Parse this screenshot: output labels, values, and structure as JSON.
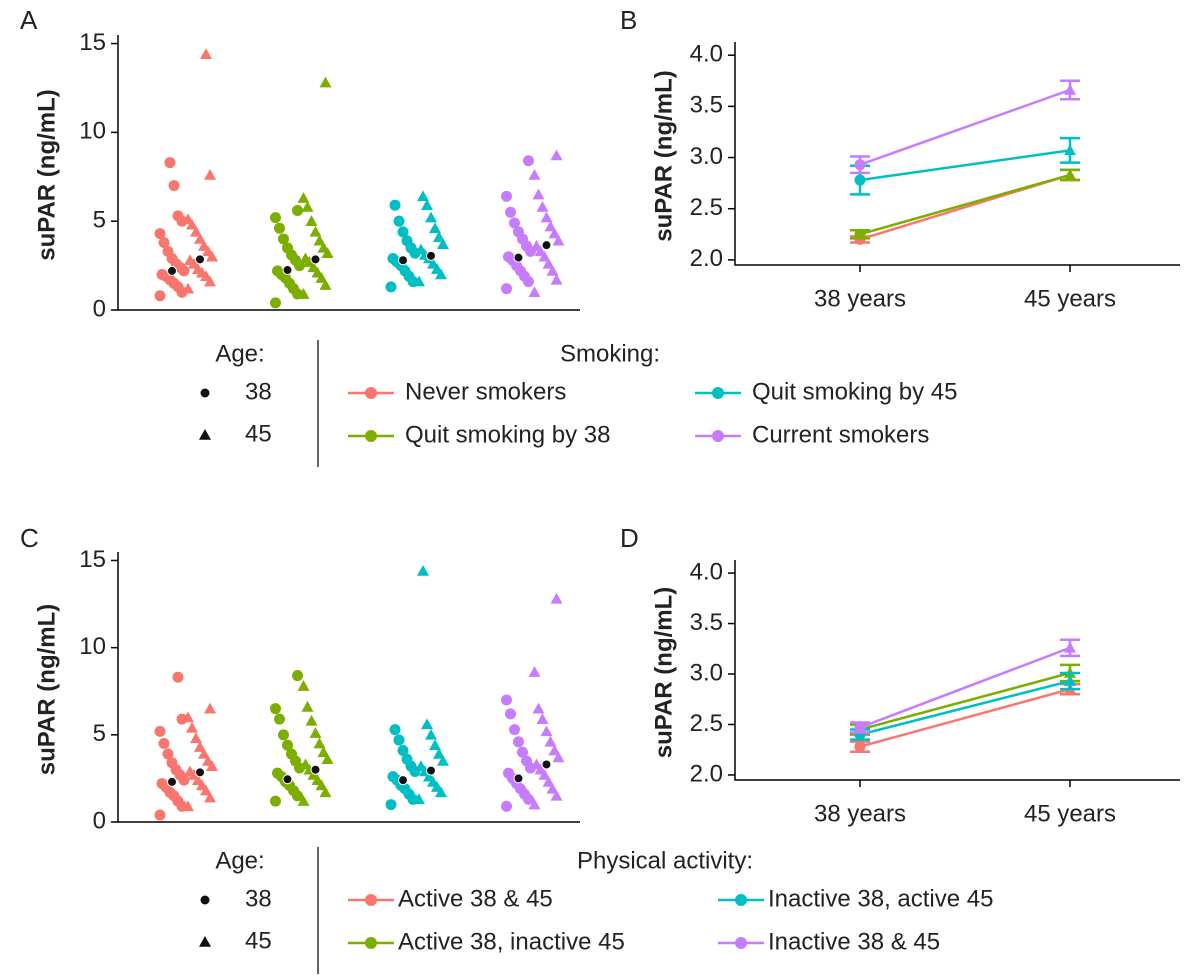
{
  "chart_data": [
    {
      "type": "strip",
      "panel": "A",
      "ylabel": "suPAR (ng/mL)",
      "ylim": [
        0,
        15.2
      ],
      "yticks": [
        0,
        5,
        10,
        15
      ],
      "legend": {
        "age_title": "Age:",
        "ages": [
          "38",
          "45"
        ],
        "group_title": "Smoking:"
      },
      "series": [
        {
          "name": "Never smokers",
          "color": "#f8766d",
          "mean38": 2.2,
          "mean45": 2.85,
          "values38": [
            0.8,
            1.0,
            1.3,
            1.5,
            1.7,
            1.9,
            2.0,
            2.2,
            2.4,
            2.6,
            2.9,
            3.3,
            3.8,
            4.3,
            5.0,
            5.3,
            7.0,
            8.3
          ],
          "values45": [
            1.2,
            1.6,
            1.9,
            2.1,
            2.3,
            2.6,
            2.8,
            3.0,
            3.3,
            3.6,
            4.0,
            4.4,
            4.8,
            5.1,
            7.6,
            14.4
          ]
        },
        {
          "name": "Quit smoking by 38",
          "color": "#7cae00",
          "mean38": 2.25,
          "mean45": 2.85,
          "values38": [
            0.4,
            0.9,
            1.2,
            1.5,
            1.8,
            2.0,
            2.2,
            2.5,
            2.8,
            3.1,
            3.5,
            4.0,
            4.6,
            5.2,
            5.6
          ],
          "values45": [
            0.9,
            1.4,
            1.8,
            2.1,
            2.4,
            2.7,
            2.9,
            3.2,
            3.5,
            3.9,
            4.4,
            5.0,
            5.8,
            6.3,
            12.8
          ]
        },
        {
          "name": "Quit smoking by 45",
          "color": "#00bfc4",
          "mean38": 2.8,
          "mean45": 3.05,
          "values38": [
            1.3,
            1.6,
            1.9,
            2.2,
            2.5,
            2.7,
            2.9,
            3.2,
            3.5,
            3.9,
            4.4,
            5.0,
            5.9
          ],
          "values45": [
            1.6,
            2.0,
            2.3,
            2.6,
            2.9,
            3.1,
            3.4,
            3.7,
            4.1,
            4.6,
            5.2,
            5.9,
            6.4
          ]
        },
        {
          "name": "Current smokers",
          "color": "#c77cff",
          "mean38": 2.95,
          "mean45": 3.65,
          "values38": [
            1.2,
            1.6,
            1.9,
            2.2,
            2.5,
            2.8,
            3.0,
            3.3,
            3.6,
            4.0,
            4.4,
            4.9,
            5.5,
            6.4,
            8.4
          ],
          "values45": [
            1.0,
            1.7,
            2.2,
            2.6,
            3.0,
            3.3,
            3.6,
            3.9,
            4.3,
            4.7,
            5.2,
            5.8,
            6.5,
            7.6,
            8.7
          ]
        }
      ]
    },
    {
      "type": "errorline",
      "panel": "B",
      "ylabel": "suPAR (ng/mL)",
      "categories": [
        "38 years",
        "45 years"
      ],
      "ylim": [
        1.95,
        4.08
      ],
      "yticks": [
        {
          "value": 2.0,
          "label": "2.0"
        },
        {
          "value": 2.5,
          "label": "2.5"
        },
        {
          "value": 3.0,
          "label": "3.0"
        },
        {
          "value": 3.5,
          "label": "3.5"
        },
        {
          "value": 4.0,
          "label": "4.0"
        }
      ],
      "series": [
        {
          "color": "#f8766d",
          "values": [
            2.2,
            2.83
          ],
          "errors": [
            0.03,
            0.05
          ]
        },
        {
          "color": "#7cae00",
          "values": [
            2.25,
            2.83
          ],
          "errors": [
            0.04,
            0.05
          ]
        },
        {
          "color": "#00bfc4",
          "values": [
            2.78,
            3.07
          ],
          "errors": [
            0.14,
            0.12
          ]
        },
        {
          "color": "#c77cff",
          "values": [
            2.93,
            3.66
          ],
          "errors": [
            0.08,
            0.09
          ]
        }
      ]
    },
    {
      "type": "strip",
      "panel": "C",
      "ylabel": "suPAR (ng/mL)",
      "ylim": [
        0,
        15.2
      ],
      "yticks": [
        0,
        5,
        10,
        15
      ],
      "legend": {
        "age_title": "Age:",
        "ages": [
          "38",
          "45"
        ],
        "group_title": "Physical activity:"
      },
      "series": [
        {
          "name": "Active 38 & 45",
          "color": "#f8766d",
          "mean38": 2.3,
          "mean45": 2.85,
          "values38": [
            0.4,
            0.9,
            1.2,
            1.5,
            1.7,
            2.0,
            2.2,
            2.4,
            2.7,
            3.0,
            3.4,
            3.9,
            4.5,
            5.2,
            5.9,
            8.3
          ],
          "values45": [
            0.9,
            1.4,
            1.8,
            2.1,
            2.4,
            2.7,
            2.9,
            3.2,
            3.5,
            3.9,
            4.3,
            4.8,
            5.4,
            6.0,
            6.5
          ]
        },
        {
          "name": "Active 38, inactive 45",
          "color": "#7cae00",
          "mean38": 2.45,
          "mean45": 3.0,
          "values38": [
            1.2,
            1.5,
            1.8,
            2.1,
            2.3,
            2.6,
            2.8,
            3.1,
            3.5,
            3.9,
            4.4,
            5.0,
            5.9,
            6.5,
            8.4
          ],
          "values45": [
            1.2,
            1.7,
            2.1,
            2.4,
            2.7,
            3.0,
            3.3,
            3.6,
            4.0,
            4.5,
            5.1,
            5.8,
            6.6,
            7.8
          ]
        },
        {
          "name": "Inactive 38, active 45",
          "color": "#00bfc4",
          "mean38": 2.4,
          "mean45": 2.95,
          "values38": [
            1.0,
            1.3,
            1.6,
            1.9,
            2.1,
            2.4,
            2.6,
            2.9,
            3.2,
            3.6,
            4.1,
            4.7,
            5.3
          ],
          "values45": [
            1.3,
            1.7,
            2.0,
            2.3,
            2.6,
            2.9,
            3.2,
            3.5,
            3.9,
            4.4,
            5.0,
            5.6,
            14.4
          ]
        },
        {
          "name": "Inactive 38 & 45",
          "color": "#c77cff",
          "mean38": 2.5,
          "mean45": 3.3,
          "values38": [
            0.9,
            1.3,
            1.6,
            1.9,
            2.2,
            2.5,
            2.8,
            3.1,
            3.5,
            4.0,
            4.6,
            5.3,
            6.2,
            7.0
          ],
          "values45": [
            1.0,
            1.5,
            1.9,
            2.3,
            2.7,
            3.0,
            3.3,
            3.7,
            4.1,
            4.6,
            5.2,
            5.9,
            6.5,
            8.6,
            12.8
          ]
        }
      ]
    },
    {
      "type": "errorline",
      "panel": "D",
      "ylabel": "suPAR (ng/mL)",
      "categories": [
        "38 years",
        "45 years"
      ],
      "ylim": [
        1.95,
        4.08
      ],
      "yticks": [
        {
          "value": 2.0,
          "label": "2.0"
        },
        {
          "value": 2.5,
          "label": "2.5"
        },
        {
          "value": 3.0,
          "label": "3.0"
        },
        {
          "value": 3.5,
          "label": "3.5"
        },
        {
          "value": 4.0,
          "label": "4.0"
        }
      ],
      "series": [
        {
          "color": "#f8766d",
          "values": [
            2.28,
            2.85
          ],
          "errors": [
            0.05,
            0.05
          ]
        },
        {
          "color": "#7cae00",
          "values": [
            2.45,
            3.01
          ],
          "errors": [
            0.05,
            0.08
          ]
        },
        {
          "color": "#00bfc4",
          "values": [
            2.4,
            2.93
          ],
          "errors": [
            0.05,
            0.08
          ]
        },
        {
          "color": "#c77cff",
          "values": [
            2.47,
            3.26
          ],
          "errors": [
            0.05,
            0.08
          ]
        }
      ]
    }
  ]
}
